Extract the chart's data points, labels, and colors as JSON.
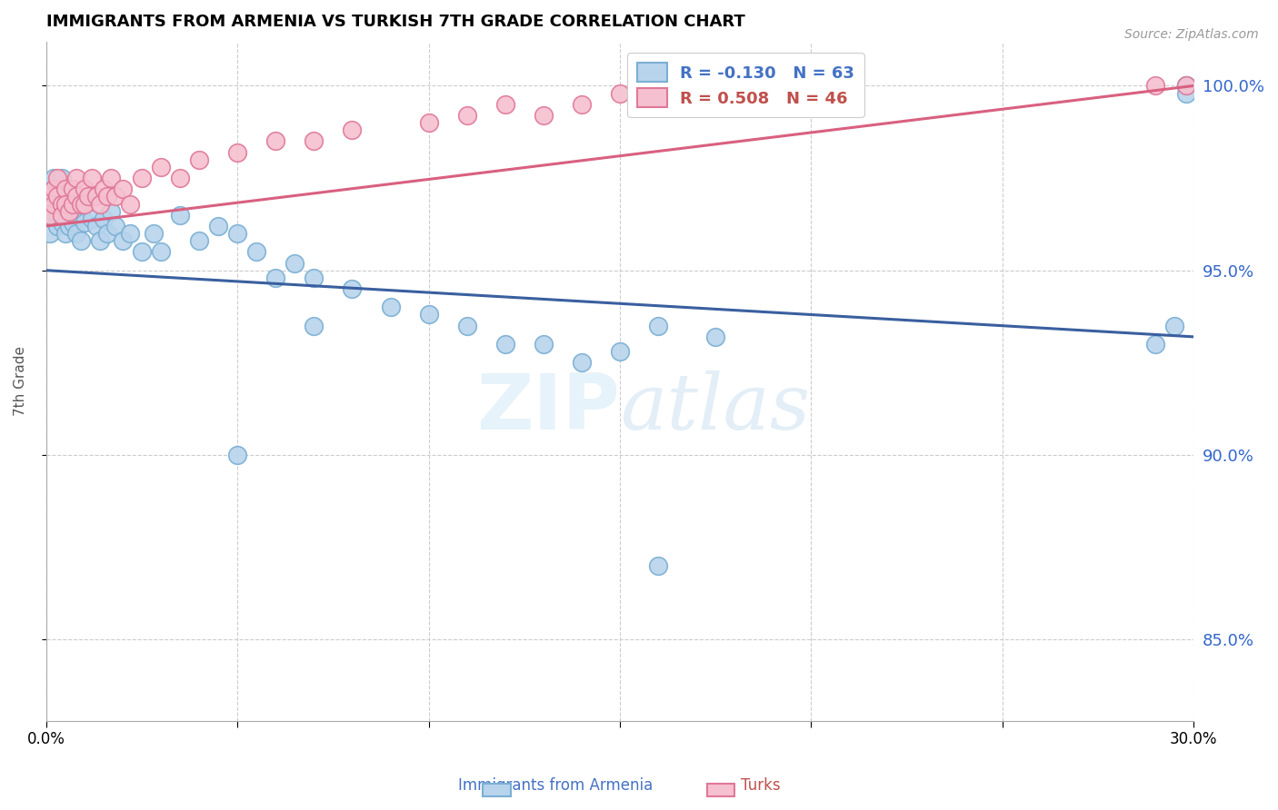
{
  "title": "IMMIGRANTS FROM ARMENIA VS TURKISH 7TH GRADE CORRELATION CHART",
  "source": "Source: ZipAtlas.com",
  "ylabel": "7th Grade",
  "ytick_values": [
    0.85,
    0.9,
    0.95,
    1.0
  ],
  "xmin": 0.0,
  "xmax": 0.3,
  "ymin": 0.828,
  "ymax": 1.012,
  "blue_R": -0.13,
  "blue_N": 63,
  "pink_R": 0.508,
  "pink_N": 46,
  "blue_color": "#b8d4ec",
  "blue_edge": "#7aafd4",
  "pink_color": "#f5c0d0",
  "pink_edge": "#e07898",
  "blue_line_color": "#3a5f9f",
  "pink_line_color": "#d96080",
  "legend_label_blue": "Immigrants from Armenia",
  "legend_label_pink": "Turks",
  "watermark_color": "#ddeef8",
  "blue_trend_x0": 0.0,
  "blue_trend_y0": 0.95,
  "blue_trend_x1": 0.3,
  "blue_trend_y1": 0.932,
  "pink_trend_x0": 0.0,
  "pink_trend_y0": 0.962,
  "pink_trend_x1": 0.3,
  "pink_trend_y1": 1.0,
  "blue_x": [
    0.001,
    0.001,
    0.001,
    0.002,
    0.002,
    0.002,
    0.003,
    0.003,
    0.003,
    0.004,
    0.004,
    0.004,
    0.005,
    0.005,
    0.005,
    0.006,
    0.006,
    0.007,
    0.007,
    0.008,
    0.008,
    0.009,
    0.009,
    0.01,
    0.011,
    0.012,
    0.013,
    0.014,
    0.015,
    0.016,
    0.017,
    0.018,
    0.02,
    0.022,
    0.025,
    0.028,
    0.03,
    0.035,
    0.04,
    0.045,
    0.05,
    0.055,
    0.06,
    0.065,
    0.07,
    0.08,
    0.09,
    0.1,
    0.11,
    0.12,
    0.13,
    0.14,
    0.15,
    0.16,
    0.175,
    0.29,
    0.295,
    0.298,
    0.298,
    0.298,
    0.05,
    0.07,
    0.16
  ],
  "blue_y": [
    0.97,
    0.965,
    0.96,
    0.975,
    0.97,
    0.966,
    0.972,
    0.968,
    0.962,
    0.975,
    0.968,
    0.963,
    0.972,
    0.965,
    0.96,
    0.968,
    0.962,
    0.97,
    0.963,
    0.968,
    0.96,
    0.965,
    0.958,
    0.963,
    0.97,
    0.964,
    0.962,
    0.958,
    0.964,
    0.96,
    0.966,
    0.962,
    0.958,
    0.96,
    0.955,
    0.96,
    0.955,
    0.965,
    0.958,
    0.962,
    0.96,
    0.955,
    0.948,
    0.952,
    0.948,
    0.945,
    0.94,
    0.938,
    0.935,
    0.93,
    0.93,
    0.925,
    0.928,
    0.935,
    0.932,
    0.93,
    0.935,
    1.0,
    1.0,
    0.998,
    0.9,
    0.935,
    0.87
  ],
  "pink_x": [
    0.001,
    0.001,
    0.002,
    0.002,
    0.003,
    0.003,
    0.004,
    0.004,
    0.005,
    0.005,
    0.006,
    0.007,
    0.007,
    0.008,
    0.008,
    0.009,
    0.01,
    0.01,
    0.011,
    0.012,
    0.013,
    0.014,
    0.015,
    0.016,
    0.017,
    0.018,
    0.02,
    0.022,
    0.025,
    0.03,
    0.035,
    0.04,
    0.05,
    0.06,
    0.07,
    0.08,
    0.1,
    0.11,
    0.12,
    0.13,
    0.14,
    0.15,
    0.16,
    0.17,
    0.29,
    0.298
  ],
  "pink_y": [
    0.97,
    0.965,
    0.972,
    0.968,
    0.975,
    0.97,
    0.968,
    0.965,
    0.972,
    0.968,
    0.966,
    0.972,
    0.968,
    0.975,
    0.97,
    0.968,
    0.972,
    0.968,
    0.97,
    0.975,
    0.97,
    0.968,
    0.972,
    0.97,
    0.975,
    0.97,
    0.972,
    0.968,
    0.975,
    0.978,
    0.975,
    0.98,
    0.982,
    0.985,
    0.985,
    0.988,
    0.99,
    0.992,
    0.995,
    0.992,
    0.995,
    0.998,
    1.0,
    1.0,
    1.0,
    1.0
  ]
}
